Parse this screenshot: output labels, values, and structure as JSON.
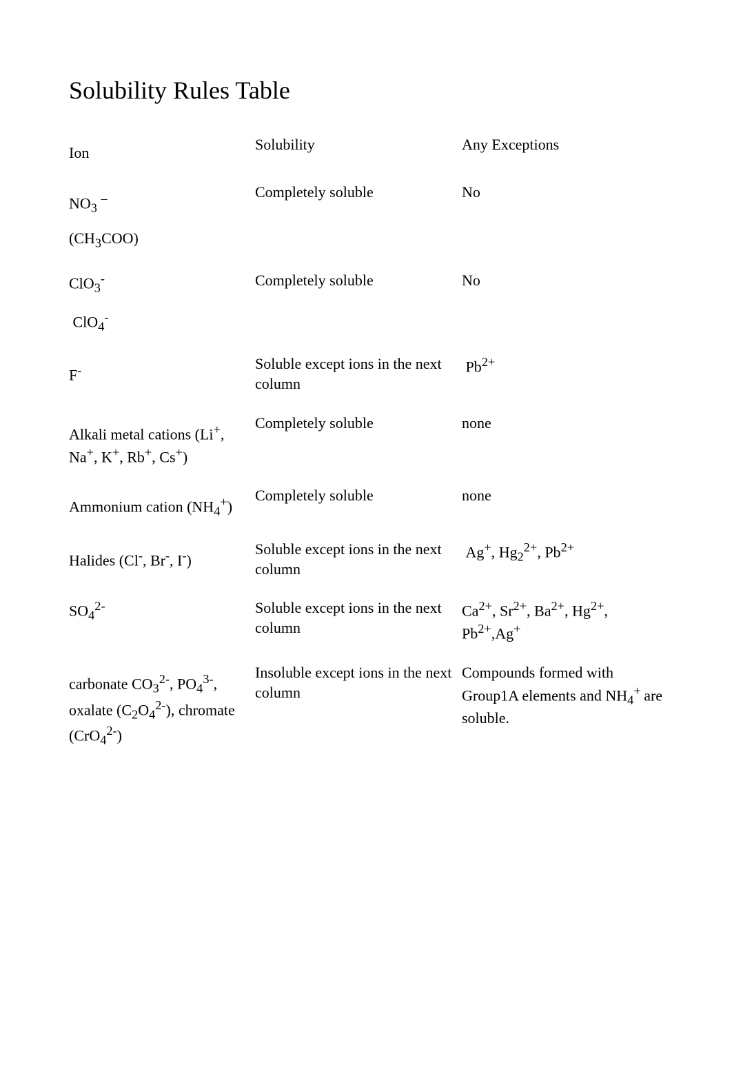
{
  "title": "Solubility Rules Table",
  "headers": {
    "ion": "Ion",
    "solubility": "Solubility",
    "exceptions": "Any Exceptions"
  },
  "rows": [
    {
      "ion_html": "NO<sub>3</sub> <sup>–</sup>",
      "solubility": "Completely soluble",
      "exceptions": "No"
    },
    {
      "ion_html": "(CH<sub>3</sub>COO)",
      "solubility": "",
      "exceptions": ""
    },
    {
      "ion_html": "ClO<sub>3</sub><sup>-</sup>",
      "solubility": "Completely soluble",
      "exceptions": "No",
      "flat": true
    },
    {
      "ion_html": "&nbsp;ClO<sub>4</sub><sup>-</sup>",
      "solubility": "",
      "exceptions": ""
    },
    {
      "ion_html": "F<sup>-</sup>",
      "solubility": "Soluble except ions in the next column",
      "exceptions": "&nbsp;Pb<sup>2+</sup>"
    },
    {
      "ion_html": "Alkali metal cations (Li<sup>+</sup>, Na<sup>+</sup>, K<sup>+</sup>, Rb<sup>+</sup>, Cs<sup>+</sup>)",
      "solubility": "Completely soluble",
      "exceptions": "none"
    },
    {
      "ion_html": "Ammonium cation (NH<sub>4</sub><sup>+</sup>)",
      "solubility": "Completely soluble",
      "exceptions": "none"
    },
    {
      "ion_html": "Halides (Cl<sup>-</sup>, Br<sup>-</sup>, I<sup>-</sup>)",
      "solubility": "Soluble except ions in the next column",
      "exceptions": "&nbsp;Ag<sup>+</sup>, Hg<sub>2</sub><sup>2+</sup>, Pb<sup>2+</sup>"
    },
    {
      "ion_html": "SO<sub>4</sub><sup>2-</sup>",
      "solubility": "Soluble except ions in the next column",
      "exceptions": "Ca<sup>2+</sup>, Sr<sup>2+</sup>, Ba<sup>2+</sup>, Hg<sup>2+</sup>, Pb<sup>2+</sup>,Ag<sup>+</sup>",
      "flat": true
    },
    {
      "ion_html": "carbonate CO<sub>3</sub><sup>2-</sup>, PO<sub>4</sub><sup>3-</sup>, oxalate (C<sub>2</sub>O<sub>4</sub><sup>2-</sup>), chromate (CrO<sub>4</sub><sup>2-</sup>)",
      "solubility": "Insoluble except ions in the next column",
      "exceptions": "Compounds formed with Group1A elements and NH<sub>4</sub><sup>+ </sup>are soluble."
    }
  ]
}
